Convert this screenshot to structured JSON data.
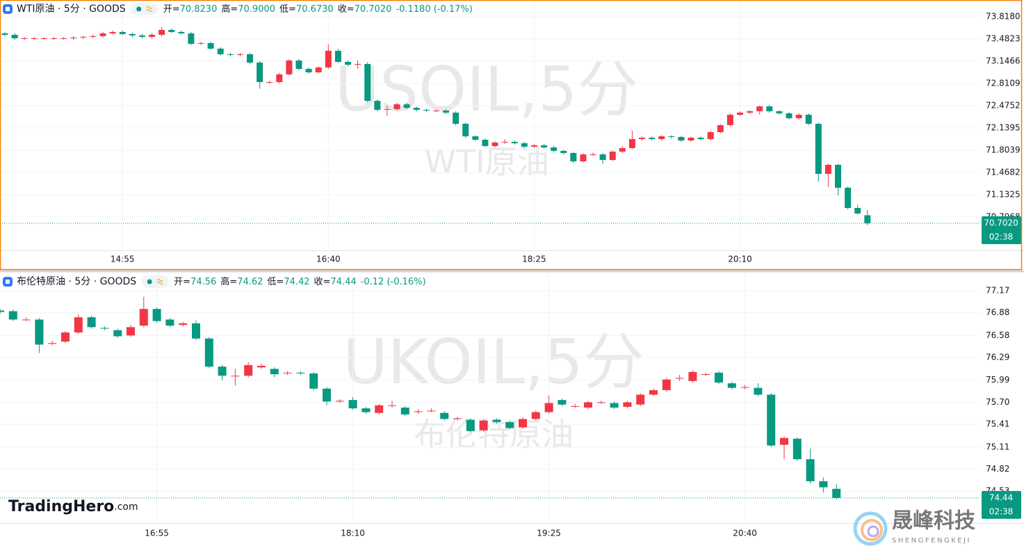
{
  "chart_data": [
    {
      "type": "candlestick",
      "symbol": "WTI原油 · 5分 · GOODS",
      "watermark": "USOIL,5分",
      "watermark_subtitle": "WTI原油",
      "ohlc_labels": [
        {
          "label": "开=",
          "value": "70.8230"
        },
        {
          "label": "高=",
          "value": "70.9000"
        },
        {
          "label": "低=",
          "value": "70.6730"
        },
        {
          "label": "收=",
          "value": "70.7020"
        }
      ],
      "change": "-0.1180 (-0.17%)",
      "up_color": "#f23645",
      "down_color": "#089981",
      "grid": true,
      "ylim": [
        70.2931,
        74.0698
      ],
      "yticks": [
        {
          "value": 73.818,
          "label": "73.8180"
        },
        73.4823,
        73.1466,
        72.8109,
        72.4752,
        72.1395,
        71.8039,
        71.4682,
        71.1325,
        70.7968
      ],
      "last_price": {
        "value": 70.702,
        "label": "70.7020"
      },
      "countdown": "02:38",
      "categories": [
        null,
        null,
        null,
        null,
        null,
        null,
        null,
        null,
        null,
        null,
        null,
        null,
        "14:55",
        null,
        null,
        null,
        null,
        null,
        null,
        null,
        null,
        null,
        null,
        null,
        null,
        null,
        null,
        null,
        null,
        null,
        null,
        null,
        null,
        "16:40",
        null,
        null,
        null,
        null,
        null,
        null,
        null,
        null,
        null,
        null,
        null,
        null,
        null,
        null,
        null,
        null,
        null,
        null,
        null,
        null,
        "18:25",
        null,
        null,
        null,
        null,
        null,
        null,
        null,
        null,
        null,
        null,
        null,
        null,
        null,
        null,
        null,
        null,
        null,
        null,
        null,
        null,
        "20:10",
        null,
        null,
        null,
        null,
        null,
        null,
        null,
        null,
        null,
        null,
        null,
        null,
        null
      ],
      "open": [
        73.566,
        73.545,
        73.493,
        73.493,
        73.493,
        73.493,
        73.493,
        73.493,
        73.504,
        73.514,
        73.525,
        73.566,
        73.587,
        73.556,
        73.535,
        73.514,
        73.545,
        73.619,
        73.587,
        73.566,
        73.409,
        73.42,
        73.336,
        73.252,
        73.241,
        73.252,
        73.126,
        72.832,
        72.832,
        72.948,
        73.157,
        73.031,
        72.979,
        73.052,
        73.304,
        73.136,
        73.094,
        73.105,
        72.549,
        72.413,
        72.423,
        72.497,
        72.444,
        72.413,
        72.402,
        72.402,
        72.371,
        72.203,
        72.014,
        71.962,
        71.867,
        71.92,
        71.93,
        71.909,
        71.857,
        71.878,
        71.846,
        71.794,
        71.762,
        71.636,
        71.741,
        71.741,
        71.657,
        71.783,
        71.836,
        71.972,
        71.993,
        71.972,
        72.014,
        72.004,
        71.951,
        71.993,
        71.972,
        72.077,
        72.182,
        72.339,
        72.371,
        72.392,
        72.465,
        72.392,
        72.36,
        72.287,
        72.339,
        72.203,
        71.447,
        71.584,
        71.238,
        70.933,
        70.823
      ],
      "high": [
        73.59,
        73.57,
        73.51,
        73.51,
        73.51,
        73.51,
        73.51,
        73.52,
        73.53,
        73.55,
        73.59,
        73.61,
        73.61,
        73.58,
        73.56,
        73.57,
        73.66,
        73.64,
        73.61,
        73.59,
        73.44,
        73.44,
        73.36,
        73.27,
        73.27,
        73.27,
        73.15,
        72.85,
        72.97,
        73.18,
        73.18,
        73.05,
        73.07,
        73.4,
        73.33,
        73.16,
        73.16,
        73.13,
        72.57,
        72.48,
        72.52,
        72.52,
        72.46,
        72.43,
        72.42,
        72.42,
        72.39,
        72.22,
        72.03,
        71.98,
        71.94,
        71.97,
        71.95,
        71.93,
        71.9,
        71.9,
        71.87,
        71.81,
        71.78,
        71.76,
        71.77,
        71.76,
        71.8,
        71.86,
        72.1,
        72.01,
        72.01,
        72.03,
        72.03,
        72.02,
        72.01,
        72.01,
        72.1,
        72.2,
        72.36,
        72.39,
        72.41,
        72.48,
        72.49,
        72.41,
        72.38,
        72.36,
        72.36,
        72.22,
        71.6,
        71.6,
        71.26,
        70.98,
        70.9
      ],
      "low": [
        73.52,
        73.47,
        73.47,
        73.47,
        73.47,
        73.47,
        73.47,
        73.47,
        73.48,
        73.49,
        73.5,
        73.55,
        73.54,
        73.51,
        73.49,
        73.49,
        73.52,
        73.57,
        73.55,
        73.39,
        73.39,
        73.32,
        73.23,
        73.22,
        73.22,
        73.1,
        72.73,
        72.81,
        72.81,
        72.93,
        73.01,
        72.96,
        72.96,
        73.03,
        73.12,
        73.07,
        73.03,
        72.53,
        72.39,
        72.32,
        72.4,
        72.42,
        72.39,
        72.38,
        72.38,
        72.35,
        72.18,
        71.99,
        71.94,
        71.85,
        71.85,
        71.9,
        71.89,
        71.84,
        71.84,
        71.83,
        71.77,
        71.74,
        71.61,
        71.62,
        71.72,
        71.6,
        71.64,
        71.76,
        71.82,
        71.95,
        71.95,
        71.95,
        71.98,
        71.93,
        71.93,
        71.95,
        71.95,
        72.06,
        72.16,
        72.32,
        72.35,
        72.34,
        72.37,
        72.34,
        72.27,
        72.26,
        72.18,
        71.33,
        71.25,
        71.12,
        70.91,
        70.83,
        70.673
      ],
      "close": [
        73.545,
        73.493,
        73.493,
        73.493,
        73.493,
        73.493,
        73.493,
        73.504,
        73.514,
        73.525,
        73.566,
        73.587,
        73.556,
        73.535,
        73.514,
        73.545,
        73.619,
        73.587,
        73.566,
        73.409,
        73.42,
        73.336,
        73.252,
        73.241,
        73.252,
        73.126,
        72.832,
        72.832,
        72.948,
        73.157,
        73.031,
        72.979,
        73.052,
        73.304,
        73.136,
        73.094,
        73.105,
        72.549,
        72.413,
        72.423,
        72.497,
        72.444,
        72.413,
        72.402,
        72.402,
        72.371,
        72.203,
        72.014,
        71.962,
        71.867,
        71.92,
        71.93,
        71.909,
        71.857,
        71.878,
        71.846,
        71.794,
        71.762,
        71.636,
        71.741,
        71.741,
        71.657,
        71.783,
        71.836,
        71.972,
        71.993,
        71.972,
        72.014,
        72.004,
        71.951,
        71.993,
        71.972,
        72.077,
        72.182,
        72.339,
        72.371,
        72.392,
        72.465,
        72.392,
        72.36,
        72.287,
        72.339,
        72.203,
        71.447,
        71.584,
        71.238,
        70.933,
        70.85,
        70.702
      ]
    },
    {
      "type": "candlestick",
      "symbol": "布伦特原油 · 5分 · GOODS",
      "watermark": "UKOIL,5分",
      "watermark_subtitle": "布伦特原油",
      "ohlc_labels": [
        {
          "label": "开=",
          "value": "74.56"
        },
        {
          "label": "高=",
          "value": "74.62"
        },
        {
          "label": "低=",
          "value": "74.42"
        },
        {
          "label": "收=",
          "value": "74.44"
        }
      ],
      "change": "-0.12 (-0.16%)",
      "up_color": "#f23645",
      "down_color": "#089981",
      "grid": true,
      "ylim": [
        74.109,
        77.408
      ],
      "yticks": [
        77.17,
        76.88,
        76.58,
        76.29,
        75.99,
        {
          "value": 75.7,
          "label": "75.70"
        },
        75.41,
        75.11,
        74.82,
        74.53
      ],
      "last_price": {
        "value": 74.44,
        "label": "74.44"
      },
      "countdown": "02:38",
      "categories": [
        null,
        null,
        null,
        null,
        null,
        null,
        null,
        null,
        null,
        null,
        null,
        null,
        "16:55",
        null,
        null,
        null,
        null,
        null,
        null,
        null,
        null,
        null,
        null,
        null,
        null,
        null,
        null,
        "18:10",
        null,
        null,
        null,
        null,
        null,
        null,
        null,
        null,
        null,
        null,
        null,
        null,
        null,
        null,
        "19:25",
        null,
        null,
        null,
        null,
        null,
        null,
        null,
        null,
        null,
        null,
        null,
        null,
        null,
        null,
        "20:40",
        null,
        null,
        null,
        null,
        null,
        null,
        null
      ],
      "open": [
        76.91,
        76.9,
        76.79,
        76.79,
        76.47,
        76.5,
        76.62,
        76.82,
        76.68,
        76.65,
        76.58,
        76.71,
        76.93,
        76.79,
        76.72,
        76.74,
        76.54,
        76.17,
        76.05,
        76.05,
        76.16,
        76.14,
        76.09,
        76.09,
        76.08,
        75.88,
        75.71,
        75.73,
        75.62,
        75.56,
        75.66,
        75.63,
        75.58,
        75.59,
        75.56,
        75.48,
        75.47,
        75.33,
        75.47,
        75.44,
        75.37,
        75.48,
        75.57,
        75.73,
        75.65,
        75.63,
        75.7,
        75.69,
        75.64,
        75.67,
        75.8,
        75.86,
        76.02,
        75.98,
        76.07,
        76.09,
        75.95,
        75.9,
        75.89,
        75.8,
        75.14,
        75.22,
        74.95,
        74.66,
        74.56
      ],
      "high": [
        76.93,
        76.92,
        76.82,
        76.81,
        76.51,
        76.64,
        76.86,
        76.84,
        76.7,
        76.67,
        76.72,
        77.09,
        76.95,
        76.81,
        76.76,
        76.78,
        76.56,
        76.19,
        76.14,
        76.23,
        76.21,
        76.16,
        76.11,
        76.11,
        76.1,
        75.9,
        75.74,
        75.77,
        75.64,
        75.68,
        75.72,
        75.65,
        75.61,
        75.62,
        75.58,
        75.51,
        75.49,
        75.48,
        75.49,
        75.46,
        75.5,
        75.59,
        75.79,
        75.75,
        75.68,
        75.72,
        75.72,
        75.71,
        75.72,
        75.82,
        75.88,
        76.02,
        76.06,
        76.12,
        76.09,
        76.11,
        75.97,
        75.93,
        75.95,
        75.82,
        75.25,
        75.24,
        75.09,
        74.71,
        74.62
      ],
      "low": [
        76.86,
        76.77,
        76.77,
        76.35,
        76.45,
        76.48,
        76.6,
        76.67,
        76.65,
        76.55,
        76.56,
        76.69,
        76.75,
        76.69,
        76.7,
        76.52,
        76.15,
        75.99,
        75.92,
        76.03,
        76.14,
        76.03,
        76.06,
        76.06,
        75.86,
        75.66,
        75.69,
        75.6,
        75.55,
        75.54,
        75.63,
        75.52,
        75.55,
        75.57,
        75.46,
        75.46,
        75.3,
        75.31,
        75.42,
        75.34,
        75.35,
        75.46,
        75.55,
        75.65,
        75.63,
        75.61,
        75.68,
        75.61,
        75.62,
        75.65,
        75.78,
        75.84,
        75.98,
        75.96,
        76.05,
        75.94,
        75.87,
        75.87,
        75.78,
        75.11,
        74.95,
        74.93,
        74.63,
        74.51,
        74.42
      ],
      "close": [
        76.89,
        76.79,
        76.79,
        76.46,
        76.48,
        76.62,
        76.82,
        76.69,
        76.67,
        76.57,
        76.69,
        76.93,
        76.77,
        76.71,
        76.74,
        76.54,
        76.17,
        76.05,
        76.05,
        76.19,
        76.18,
        76.07,
        76.09,
        76.08,
        75.88,
        75.71,
        75.72,
        75.62,
        75.57,
        75.66,
        75.66,
        75.54,
        75.58,
        75.59,
        75.48,
        75.49,
        75.32,
        75.46,
        75.44,
        75.36,
        75.48,
        75.57,
        75.69,
        75.67,
        75.65,
        75.7,
        75.7,
        75.63,
        75.7,
        75.8,
        75.86,
        76.0,
        76.02,
        76.1,
        76.07,
        75.96,
        75.89,
        75.9,
        75.8,
        75.13,
        75.23,
        74.95,
        74.66,
        74.58,
        74.44
      ]
    }
  ],
  "branding": {
    "logo_left": "TradingHero",
    "logo_left_suffix": ".com",
    "logo_right": "晟峰科技",
    "logo_right_sub": "SHENGFENGKEJI"
  }
}
